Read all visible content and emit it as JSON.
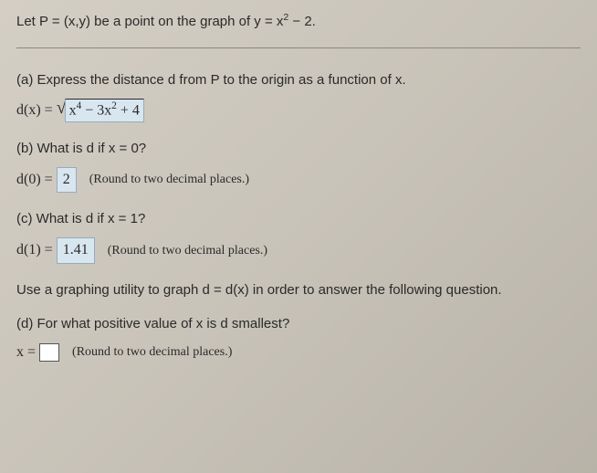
{
  "intro": {
    "prefix": "Let P = (x,y) be a point on the graph of y = x",
    "exp": "2",
    "suffix": " − 2."
  },
  "partA": {
    "label": "(a)  Express the distance d from P to the origin as a function of x.",
    "lhs": "d(x) = ",
    "radicand_pre": "x",
    "radicand_exp1": "4",
    "radicand_mid": " − 3x",
    "radicand_exp2": "2",
    "radicand_post": " + 4"
  },
  "partB": {
    "label": "(b)  What is d if x = 0?",
    "lhs": "d(0) = ",
    "value": "2",
    "hint": "(Round to two decimal places.)"
  },
  "partC": {
    "label": "(c)  What is d if x = 1?",
    "lhs": "d(1) = ",
    "value": "1.41",
    "hint": "(Round to two decimal places.)"
  },
  "useText": "Use a graphing utility to graph d = d(x) in order to answer the following question.",
  "partD": {
    "label": "(d)  For what positive value of x is d smallest?",
    "lhs": "x = ",
    "hint": "(Round to two decimal places.)"
  }
}
